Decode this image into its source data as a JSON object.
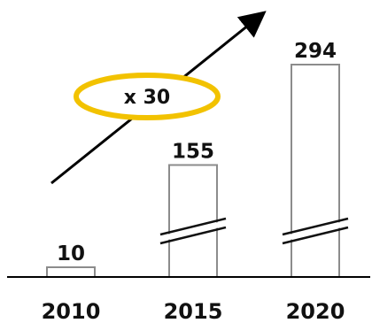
{
  "chart_data": {
    "type": "bar",
    "categories": [
      "2010",
      "2015",
      "2020"
    ],
    "values": [
      10,
      155,
      294
    ],
    "broken_axis_bars": [
      "2015",
      "2020"
    ],
    "annotation": {
      "text": "x 30",
      "style": "ellipse with upward arrow",
      "color": "#f2c200"
    },
    "title": "",
    "xlabel": "",
    "ylabel": "",
    "grid": false,
    "legend": "none"
  }
}
